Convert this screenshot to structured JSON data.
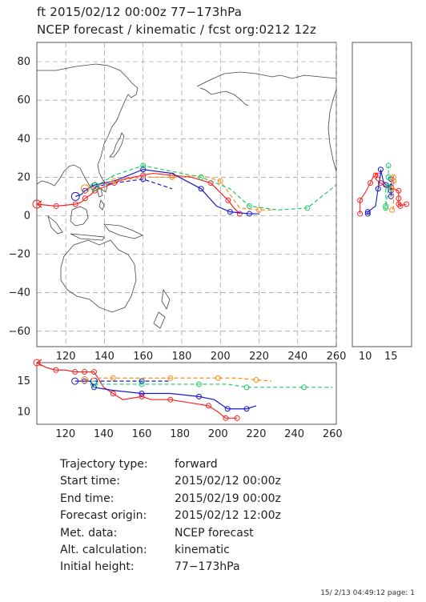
{
  "title_line1": "ft 2015/02/12 00:00z  77−173hPa",
  "title_line2": "NCEP forecast / kinematic / fcst org:0212 12z",
  "main_map": {
    "xlim": [
      105,
      260
    ],
    "ylim": [
      -68,
      90
    ],
    "x_ticks": [
      "120",
      "140",
      "160",
      "180",
      "200",
      "220",
      "240",
      "260"
    ],
    "y_ticks": [
      "−60",
      "−40",
      "−20",
      "0",
      "20",
      "40",
      "60",
      "80"
    ]
  },
  "height_panel": {
    "x_ticks": [
      "10",
      "15"
    ]
  },
  "bottom_panel": {
    "xlim": [
      105,
      262
    ],
    "ylim": [
      8,
      18
    ],
    "x_ticks": [
      "120",
      "140",
      "160",
      "180",
      "200",
      "220",
      "240",
      "260"
    ],
    "y_ticks": [
      "10",
      "15"
    ]
  },
  "info": [
    {
      "label": "Trajectory type:",
      "value": "forward"
    },
    {
      "label": "Start time:",
      "value": "2015/02/12 00:00z"
    },
    {
      "label": "End time:",
      "value": "2015/02/19 00:00z"
    },
    {
      "label": "Forecast origin:",
      "value": "2015/02/12 12:00z"
    },
    {
      "label": "Met. data:",
      "value": "NCEP forecast"
    },
    {
      "label": "Alt. calculation:",
      "value": "kinematic"
    },
    {
      "label": "Initial height:",
      "value": "  77−173hPa"
    }
  ],
  "stamp": "15/ 2/13 04:49:12 page: 1",
  "chart_data": {
    "type": "map-trajectory",
    "series": [
      {
        "color": "#ff2020",
        "style": "solid",
        "lon": [
          105,
          110,
          115,
          120,
          125,
          128,
          130,
          133,
          135,
          140,
          145,
          150,
          160,
          165,
          175,
          185,
          195,
          200,
          204,
          207,
          210
        ],
        "lat": [
          6,
          5.5,
          5,
          5.5,
          6,
          7,
          9,
          11,
          13,
          15,
          17,
          19,
          21,
          22,
          21,
          20,
          17,
          12,
          8,
          4,
          1
        ],
        "p": [
          18,
          17.2,
          16.8,
          16.8,
          16.5,
          16.5,
          16.5,
          16.5,
          16.5,
          14,
          13,
          12,
          12.5,
          12,
          12,
          11.5,
          11,
          10,
          9,
          9,
          9
        ]
      },
      {
        "color": "#1a1acc",
        "style": "solid",
        "lon": [
          125,
          128,
          130,
          133,
          135,
          145,
          160,
          175,
          190,
          198,
          205,
          210,
          215,
          220
        ],
        "lat": [
          10,
          11,
          13,
          15,
          16,
          18,
          24,
          22,
          14,
          5,
          2,
          1.5,
          1,
          1
        ],
        "p": [
          15,
          15,
          15,
          15,
          14,
          13.5,
          13,
          13,
          12.5,
          12,
          10.5,
          10.5,
          10.5,
          11
        ]
      },
      {
        "color": "#1a1acc",
        "style": "dashed",
        "lon": [
          135,
          145,
          160,
          175
        ],
        "lat": [
          15,
          17,
          19,
          14
        ],
        "p": [
          15,
          15,
          15,
          15
        ]
      },
      {
        "color": "#ff8c1a",
        "style": "dashed",
        "lon": [
          130,
          135,
          145,
          160,
          175,
          190,
          200,
          210,
          220,
          228
        ],
        "lat": [
          14,
          15,
          18,
          20,
          20,
          21,
          18,
          4,
          3,
          3
        ],
        "p": [
          15.2,
          15.5,
          15.5,
          15.5,
          15.5,
          15.5,
          15.5,
          15.5,
          15.2,
          15
        ]
      },
      {
        "color": "#22cc66",
        "style": "dashed",
        "lon": [
          135,
          145,
          160,
          175,
          190,
          205,
          215,
          230,
          245,
          260
        ],
        "lat": [
          15,
          21,
          26,
          23,
          20,
          14,
          5,
          3,
          4,
          16
        ],
        "p": [
          14.5,
          14.5,
          14.5,
          14.5,
          14.5,
          14.5,
          14,
          14,
          14,
          14
        ]
      }
    ]
  }
}
